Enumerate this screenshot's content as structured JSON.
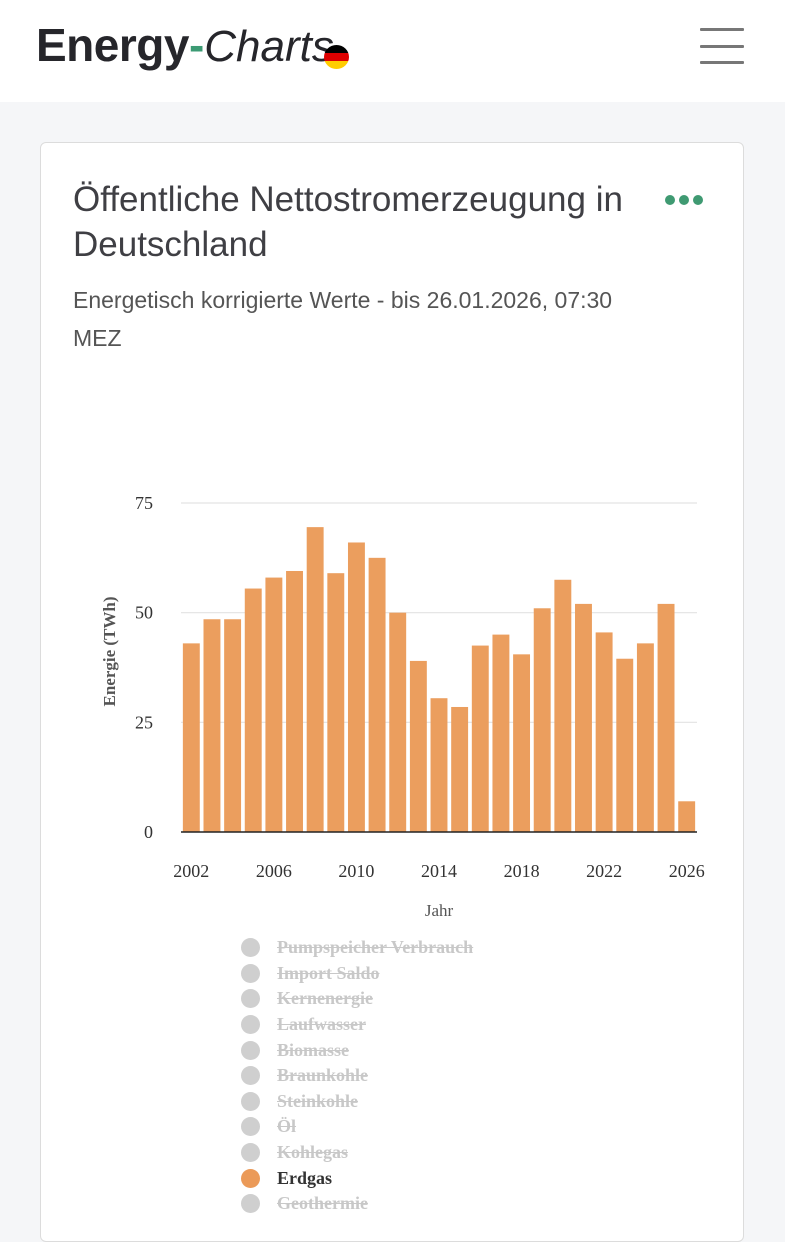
{
  "header": {
    "logo_energy": "Energy",
    "logo_dash": "-",
    "logo_charts": "Charts",
    "menu_icon": "hamburger-menu-icon",
    "flag_colors": [
      "#000000",
      "#dd0000",
      "#ffcc00"
    ]
  },
  "card": {
    "title": "Öffentliche Nettostromerzeugung in Deutschland",
    "subtitle": "Energetisch korrigierte Werte - bis 26.01.2026, 07:30 MEZ",
    "more_icon": "more-dots-icon",
    "accent_color": "#3f9a72"
  },
  "chart_data": {
    "type": "bar",
    "title": "",
    "xlabel": "Jahr",
    "ylabel": "Energie (TWh)",
    "ylim": [
      0,
      75
    ],
    "yticks": [
      0,
      25,
      50,
      75
    ],
    "xtick_labels": [
      "2002",
      "2006",
      "2010",
      "2014",
      "2018",
      "2022",
      "2026"
    ],
    "grid": true,
    "bar_color": "#eb9e5e",
    "categories": [
      "2002",
      "2003",
      "2004",
      "2005",
      "2006",
      "2007",
      "2008",
      "2009",
      "2010",
      "2011",
      "2012",
      "2013",
      "2014",
      "2015",
      "2016",
      "2017",
      "2018",
      "2019",
      "2020",
      "2021",
      "2022",
      "2023",
      "2024",
      "2025",
      "2026"
    ],
    "series": [
      {
        "name": "Erdgas",
        "values": [
          43,
          48.5,
          48.5,
          55.5,
          58,
          59.5,
          69.5,
          59,
          66,
          62.5,
          50,
          39,
          30.5,
          28.5,
          42.5,
          45,
          40.5,
          51,
          57.5,
          52,
          45.5,
          39.5,
          43,
          52,
          7
        ]
      }
    ]
  },
  "legend": [
    {
      "label": "Pumpspeicher Verbrauch",
      "active": false
    },
    {
      "label": "Import Saldo",
      "active": false
    },
    {
      "label": "Kernenergie",
      "active": false
    },
    {
      "label": "Laufwasser",
      "active": false
    },
    {
      "label": "Biomasse",
      "active": false
    },
    {
      "label": "Braunkohle",
      "active": false
    },
    {
      "label": "Steinkohle",
      "active": false
    },
    {
      "label": "Öl",
      "active": false
    },
    {
      "label": "Kohlegas",
      "active": false
    },
    {
      "label": "Erdgas",
      "active": true
    },
    {
      "label": "Geothermie",
      "active": false
    }
  ]
}
